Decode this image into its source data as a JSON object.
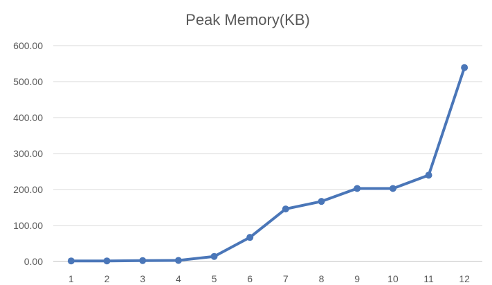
{
  "chart_data": {
    "type": "line",
    "title": "Peak Memory(KB)",
    "xlabel": "",
    "ylabel": "",
    "categories": [
      "1",
      "2",
      "3",
      "4",
      "5",
      "6",
      "7",
      "8",
      "9",
      "10",
      "11",
      "12"
    ],
    "series": [
      {
        "values": [
          1.5,
          1.5,
          2.5,
          3,
          14,
          67,
          146,
          167,
          203,
          203,
          240,
          539
        ],
        "color": "#4a76b8"
      }
    ],
    "ylim": [
      0,
      600
    ],
    "y_ticks": [
      "0.00",
      "100.00",
      "200.00",
      "300.00",
      "400.00",
      "500.00",
      "600.00"
    ],
    "grid": true,
    "legend": "none",
    "markers": true
  }
}
